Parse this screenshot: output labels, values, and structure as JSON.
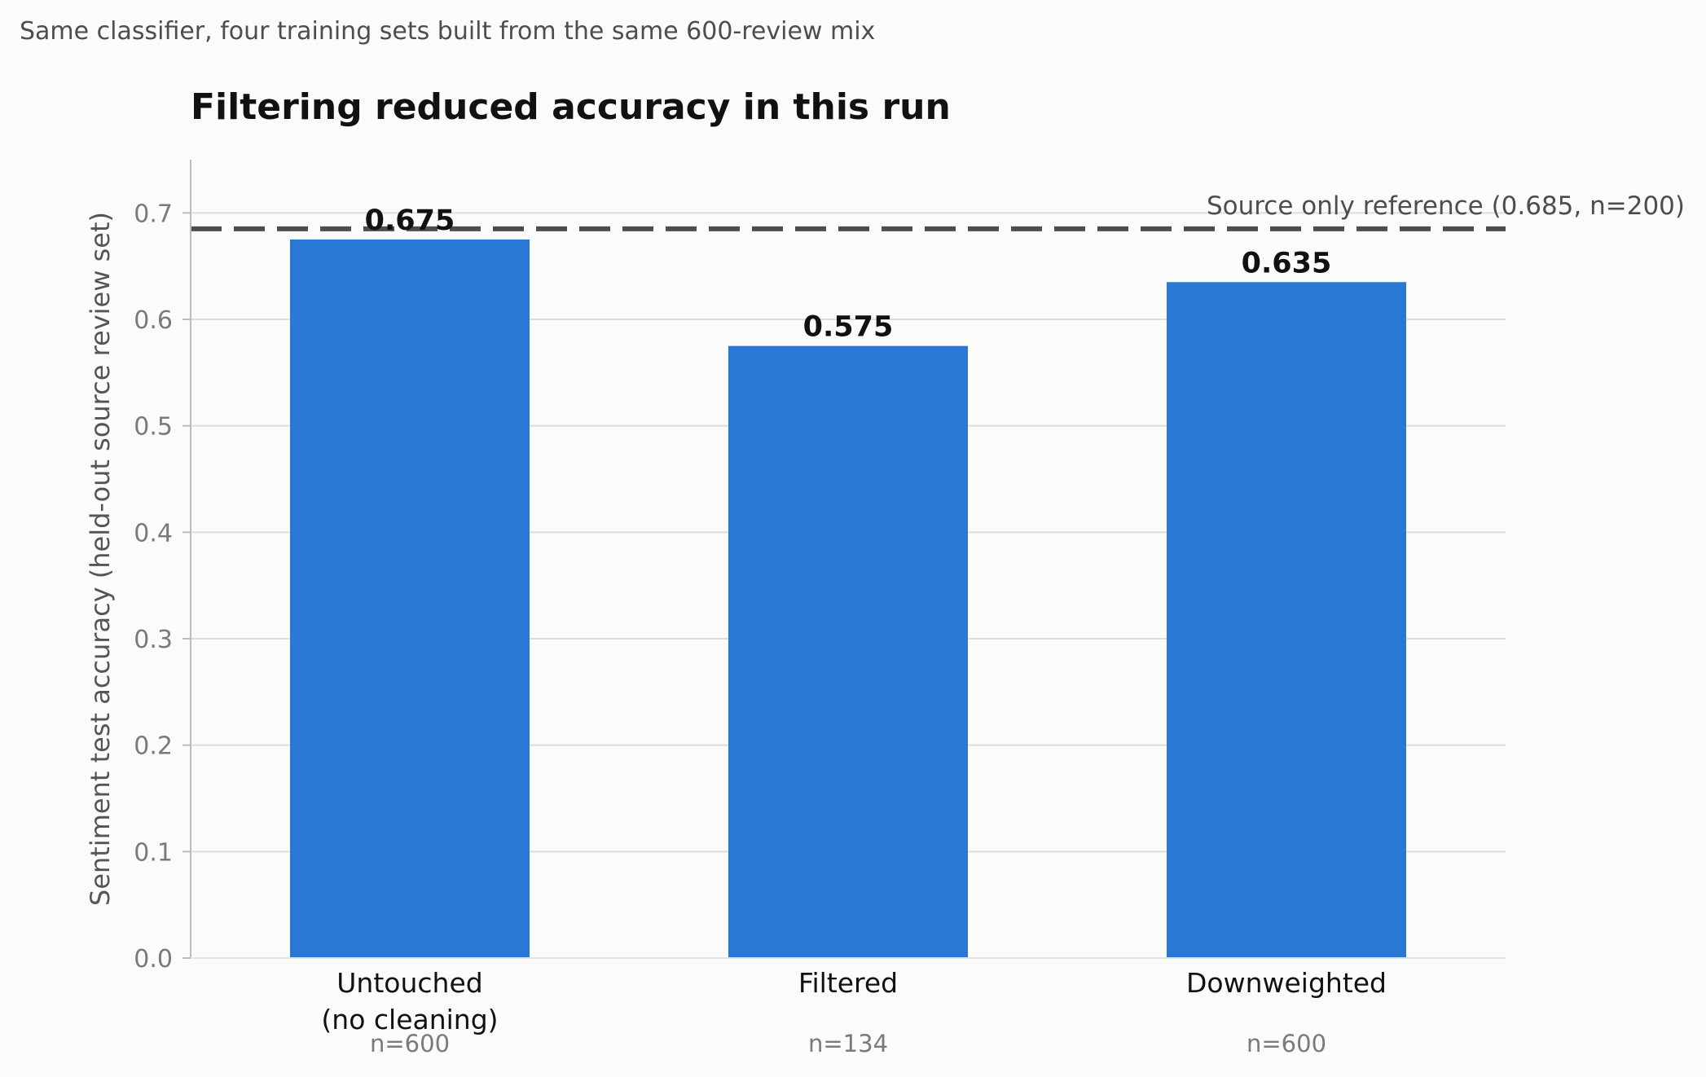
{
  "chart_data": {
    "type": "bar",
    "subtitle": "Same classifier, four training sets built from the same 600-review mix",
    "title": "Filtering reduced accuracy in this run",
    "xlabel": "",
    "ylabel": "Sentiment test accuracy (held-out source review set)",
    "ylim": [
      0,
      0.75
    ],
    "yticks": [
      "0.0",
      "0.1",
      "0.2",
      "0.3",
      "0.4",
      "0.5",
      "0.6",
      "0.7"
    ],
    "grid": "horizontal",
    "categories": [
      [
        "Untouched",
        "(no cleaning)"
      ],
      [
        "Filtered"
      ],
      [
        "Downweighted"
      ]
    ],
    "values": [
      0.675,
      0.575,
      0.635
    ],
    "value_labels": [
      "0.675",
      "0.575",
      "0.635"
    ],
    "counts": [
      "n=600",
      "n=134",
      "n=600"
    ],
    "reference_line": {
      "value": 0.685,
      "label": "Source only reference (0.685, n=200)",
      "style": "dashed"
    },
    "colors": {
      "bar": "#2a78d6",
      "reference": "#4d4d4d",
      "grid": "#dddddd",
      "axis": "#bbbbbb",
      "tick_text": "#7a7a7a",
      "text": "#111111",
      "subtitle_text": "#4d4d4d"
    }
  }
}
